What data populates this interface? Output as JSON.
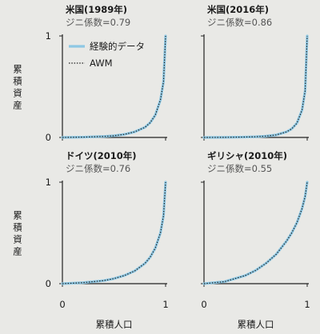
{
  "chart_data": [
    {
      "type": "line",
      "title": "米国(1989年)",
      "subtitle": "ジニ係数=0.79",
      "xlabel": "",
      "ylabel": "累積資産",
      "xlim": [
        0,
        1
      ],
      "ylim": [
        0,
        1
      ],
      "x_ticks": [],
      "y_ticks": [
        "1",
        "0"
      ],
      "series": [
        {
          "name": "経験的データ",
          "x": [
            0,
            0.2,
            0.4,
            0.5,
            0.6,
            0.7,
            0.8,
            0.85,
            0.9,
            0.95,
            0.98,
            1.0
          ],
          "y": [
            0,
            0.003,
            0.01,
            0.017,
            0.03,
            0.055,
            0.1,
            0.145,
            0.22,
            0.37,
            0.55,
            1.0
          ]
        },
        {
          "name": "AWM",
          "x": [
            0,
            0.2,
            0.4,
            0.5,
            0.6,
            0.7,
            0.8,
            0.85,
            0.9,
            0.95,
            0.98,
            1.0
          ],
          "y": [
            0,
            0.003,
            0.01,
            0.017,
            0.03,
            0.055,
            0.1,
            0.145,
            0.22,
            0.37,
            0.55,
            1.0
          ]
        }
      ]
    },
    {
      "type": "line",
      "title": "米国(2016年)",
      "subtitle": "ジニ係数=0.86",
      "xlabel": "",
      "ylabel": "",
      "xlim": [
        0,
        1
      ],
      "ylim": [
        0,
        1
      ],
      "x_ticks": [],
      "y_ticks": [],
      "series": [
        {
          "name": "経験的データ",
          "x": [
            0,
            0.2,
            0.4,
            0.5,
            0.6,
            0.7,
            0.8,
            0.85,
            0.9,
            0.95,
            0.98,
            1.0
          ],
          "y": [
            0,
            0.001,
            0.004,
            0.007,
            0.013,
            0.025,
            0.055,
            0.085,
            0.14,
            0.27,
            0.46,
            1.0
          ]
        },
        {
          "name": "AWM",
          "x": [
            0,
            0.2,
            0.4,
            0.5,
            0.6,
            0.7,
            0.8,
            0.85,
            0.9,
            0.95,
            0.98,
            1.0
          ],
          "y": [
            0,
            0.001,
            0.004,
            0.007,
            0.013,
            0.025,
            0.055,
            0.085,
            0.14,
            0.27,
            0.46,
            1.0
          ]
        }
      ]
    },
    {
      "type": "line",
      "title": "ドイツ(2010年)",
      "subtitle": "ジニ係数=0.76",
      "xlabel": "累積人口",
      "ylabel": "累積資産",
      "xlim": [
        0,
        1
      ],
      "ylim": [
        0,
        1
      ],
      "x_ticks": [
        "0",
        "1"
      ],
      "y_ticks": [
        "1",
        "0"
      ],
      "series": [
        {
          "name": "経験的データ",
          "x": [
            0,
            0.2,
            0.4,
            0.5,
            0.6,
            0.7,
            0.8,
            0.85,
            0.9,
            0.95,
            0.98,
            1.0
          ],
          "y": [
            0,
            0.01,
            0.03,
            0.05,
            0.08,
            0.125,
            0.2,
            0.26,
            0.35,
            0.5,
            0.67,
            1.0
          ]
        },
        {
          "name": "AWM",
          "x": [
            0,
            0.2,
            0.4,
            0.5,
            0.6,
            0.7,
            0.8,
            0.85,
            0.9,
            0.95,
            0.98,
            1.0
          ],
          "y": [
            0,
            0.01,
            0.03,
            0.05,
            0.08,
            0.125,
            0.2,
            0.26,
            0.35,
            0.5,
            0.67,
            1.0
          ]
        }
      ]
    },
    {
      "type": "line",
      "title": "ギリシャ(2010年)",
      "subtitle": "ジニ係数=0.55",
      "xlabel": "累積人口",
      "ylabel": "",
      "xlim": [
        0,
        1
      ],
      "ylim": [
        0,
        1
      ],
      "x_ticks": [
        "0",
        "1"
      ],
      "y_ticks": [],
      "series": [
        {
          "name": "経験的データ",
          "x": [
            0,
            0.2,
            0.4,
            0.5,
            0.6,
            0.7,
            0.8,
            0.85,
            0.9,
            0.95,
            0.98,
            1.0
          ],
          "y": [
            0,
            0.02,
            0.08,
            0.13,
            0.2,
            0.29,
            0.42,
            0.5,
            0.6,
            0.74,
            0.86,
            1.0
          ]
        },
        {
          "name": "AWM",
          "x": [
            0,
            0.2,
            0.4,
            0.5,
            0.6,
            0.7,
            0.8,
            0.85,
            0.9,
            0.95,
            0.98,
            1.0
          ],
          "y": [
            0,
            0.02,
            0.08,
            0.13,
            0.2,
            0.29,
            0.42,
            0.5,
            0.6,
            0.74,
            0.86,
            1.0
          ]
        }
      ]
    }
  ],
  "legend": {
    "placement": "top-left of first panel",
    "empirical_label": "経験的データ",
    "awm_label": "AWM"
  },
  "colors": {
    "empirical": "#8ec8e4",
    "awm": "#222222",
    "axis": "#222222"
  }
}
